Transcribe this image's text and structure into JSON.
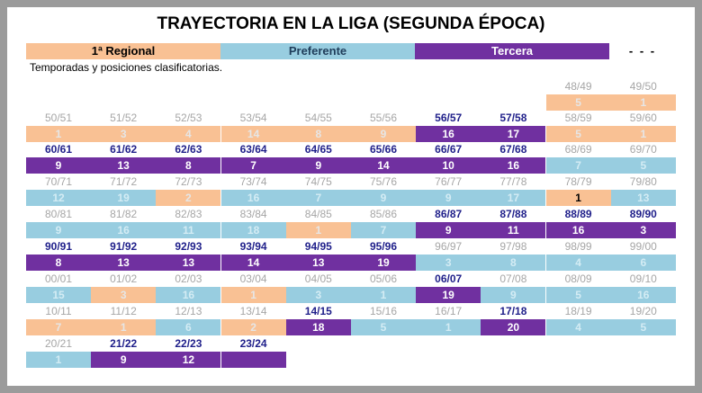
{
  "title": "TRAYECTORIA EN LA LIGA (SEGUNDA ÉPOCA)",
  "legend": {
    "regional": "1ª Regional",
    "preferente": "Preferente",
    "tercera": "Tercera",
    "none": "- - -"
  },
  "subtitle": "Temporadas y posiciones clasificatorias.",
  "colors": {
    "regional": "#f9c194",
    "preferente": "#98cde0",
    "tercera": "#7030a0",
    "background": "#9b9b9b"
  },
  "rows": [
    [
      null,
      null,
      null,
      null,
      null,
      null,
      null,
      null,
      [
        "48/49",
        "5",
        "r"
      ],
      [
        "49/50",
        "1",
        "r"
      ]
    ],
    [
      [
        "50/51",
        "1",
        "r"
      ],
      [
        "51/52",
        "3",
        "r"
      ],
      [
        "52/53",
        "4",
        "r"
      ],
      [
        "53/54",
        "14",
        "r"
      ],
      [
        "54/55",
        "8",
        "r"
      ],
      [
        "55/56",
        "9",
        "r"
      ],
      [
        "56/57",
        "16",
        "t"
      ],
      [
        "57/58",
        "17",
        "t"
      ],
      [
        "58/59",
        "5",
        "r"
      ],
      [
        "59/60",
        "1",
        "r"
      ]
    ],
    [
      [
        "60/61",
        "9",
        "t"
      ],
      [
        "61/62",
        "13",
        "t"
      ],
      [
        "62/63",
        "8",
        "t"
      ],
      [
        "63/64",
        "7",
        "t"
      ],
      [
        "64/65",
        "9",
        "t"
      ],
      [
        "65/66",
        "14",
        "t"
      ],
      [
        "66/67",
        "10",
        "t"
      ],
      [
        "67/68",
        "16",
        "t"
      ],
      [
        "68/69",
        "7",
        "p"
      ],
      [
        "69/70",
        "5",
        "p"
      ]
    ],
    [
      [
        "70/71",
        "12",
        "p"
      ],
      [
        "71/72",
        "19",
        "p"
      ],
      [
        "72/73",
        "2",
        "r"
      ],
      [
        "73/74",
        "16",
        "p"
      ],
      [
        "74/75",
        "7",
        "p"
      ],
      [
        "75/76",
        "9",
        "p"
      ],
      [
        "76/77",
        "9",
        "p"
      ],
      [
        "77/78",
        "17",
        "p"
      ],
      [
        "78/79",
        "1",
        "r"
      ],
      [
        "79/80",
        "13",
        "p"
      ]
    ],
    [
      [
        "80/81",
        "9",
        "p"
      ],
      [
        "81/82",
        "16",
        "p"
      ],
      [
        "82/83",
        "11",
        "p"
      ],
      [
        "83/84",
        "18",
        "p"
      ],
      [
        "84/85",
        "1",
        "r"
      ],
      [
        "85/86",
        "7",
        "p"
      ],
      [
        "86/87",
        "9",
        "t"
      ],
      [
        "87/88",
        "11",
        "t"
      ],
      [
        "88/89",
        "16",
        "t"
      ],
      [
        "89/90",
        "3",
        "t"
      ]
    ],
    [
      [
        "90/91",
        "8",
        "t"
      ],
      [
        "91/92",
        "13",
        "t"
      ],
      [
        "92/93",
        "13",
        "t"
      ],
      [
        "93/94",
        "14",
        "t"
      ],
      [
        "94/95",
        "13",
        "t"
      ],
      [
        "95/96",
        "19",
        "t"
      ],
      [
        "96/97",
        "3",
        "p"
      ],
      [
        "97/98",
        "8",
        "p"
      ],
      [
        "98/99",
        "4",
        "p"
      ],
      [
        "99/00",
        "6",
        "p"
      ]
    ],
    [
      [
        "00/01",
        "15",
        "p"
      ],
      [
        "01/02",
        "3",
        "r"
      ],
      [
        "02/03",
        "16",
        "p"
      ],
      [
        "03/04",
        "1",
        "r"
      ],
      [
        "04/05",
        "3",
        "p"
      ],
      [
        "05/06",
        "1",
        "p"
      ],
      [
        "06/07",
        "19",
        "t"
      ],
      [
        "07/08",
        "9",
        "p"
      ],
      [
        "08/09",
        "5",
        "p"
      ],
      [
        "09/10",
        "16",
        "p"
      ]
    ],
    [
      [
        "10/11",
        "7",
        "r"
      ],
      [
        "11/12",
        "1",
        "r"
      ],
      [
        "12/13",
        "6",
        "p"
      ],
      [
        "13/14",
        "2",
        "r"
      ],
      [
        "14/15",
        "18",
        "t"
      ],
      [
        "15/16",
        "5",
        "p"
      ],
      [
        "16/17",
        "1",
        "p"
      ],
      [
        "17/18",
        "20",
        "t"
      ],
      [
        "18/19",
        "4",
        "p"
      ],
      [
        "19/20",
        "5",
        "p"
      ]
    ],
    [
      [
        "20/21",
        "1",
        "p"
      ],
      [
        "21/22",
        "9",
        "t"
      ],
      [
        "22/23",
        "12",
        "t"
      ],
      [
        "23/24",
        "",
        "t"
      ],
      null,
      null,
      null,
      null,
      null,
      null
    ]
  ]
}
